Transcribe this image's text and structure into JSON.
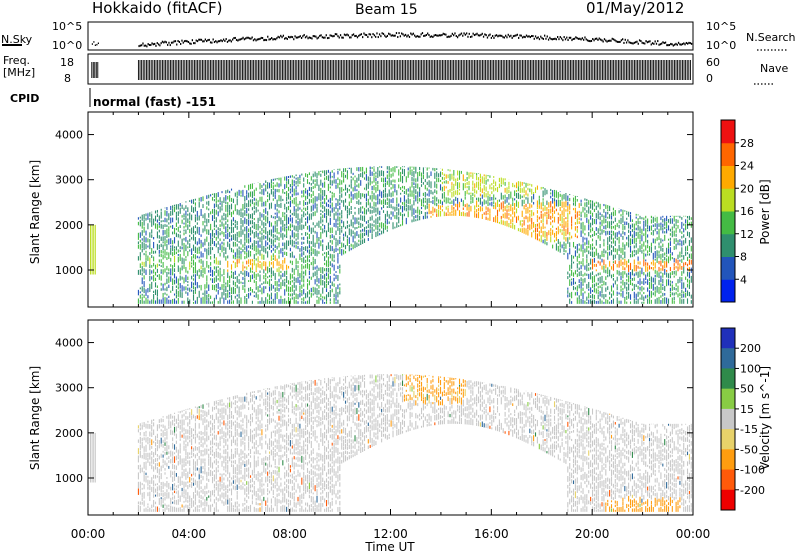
{
  "header": {
    "title": "Hokkaido (fitACF)",
    "beam": "Beam 15",
    "date": "01/May/2012"
  },
  "strips": {
    "nsky": {
      "label": "N.Sky",
      "ticks": [
        "10^5",
        "10^0"
      ],
      "right_ticks": [
        "10^5",
        "10^0"
      ],
      "right_label": "N.Search"
    },
    "freq": {
      "label_line1": "Freq.",
      "label_line2": "[MHz]",
      "ticks": [
        "18",
        "8"
      ],
      "right_ticks": [
        "60",
        "0"
      ],
      "right_label": "Nave"
    },
    "cpid": {
      "label": "CPID",
      "value": "normal (fast) -151"
    }
  },
  "colors": {
    "power": [
      "#0022ee",
      "#2255bb",
      "#2f8f6e",
      "#44bb44",
      "#bbdd22",
      "#ffaa00",
      "#ff6600",
      "#ee1111"
    ],
    "velocity": [
      "#2030bb",
      "#2f6a9a",
      "#2f8a4a",
      "#88cc44",
      "#c8c8c8",
      "#e8d26a",
      "#ff9d10",
      "#ff5a0a",
      "#ee0000"
    ]
  },
  "chart_data": [
    {
      "type": "heatmap",
      "name": "power",
      "ylabel": "Slant Range [km]",
      "ylim": [
        180,
        4500
      ],
      "yticks": [
        1000,
        2000,
        3000,
        4000
      ],
      "xlabel": "",
      "xlim": [
        "00:00",
        "24:00"
      ],
      "colorbar": {
        "label": "Power [dB]",
        "ticks": [
          4,
          8,
          12,
          16,
          20,
          24,
          28
        ],
        "range": [
          0,
          32
        ]
      },
      "data_gap": [
        "00:20",
        "02:00"
      ],
      "echo_regions": [
        {
          "t": [
            2.0,
            9.0
          ],
          "range_km": [
            1000,
            1250
          ],
          "value": 14
        },
        {
          "t": [
            5.5,
            8.0
          ],
          "range_km": [
            950,
            1200
          ],
          "value": 22
        },
        {
          "t": [
            2.0,
            14.0
          ],
          "range_km": [
            1400,
            2400
          ],
          "value": 10
        },
        {
          "t": [
            13.5,
            19.5
          ],
          "range_km": [
            1600,
            2400
          ],
          "value": 22
        },
        {
          "t": [
            14.0,
            18.0
          ],
          "range_km": [
            2600,
            3200
          ],
          "value": 18
        },
        {
          "t": [
            20.0,
            24.0
          ],
          "range_km": [
            950,
            1150
          ],
          "value": 24
        }
      ]
    },
    {
      "type": "heatmap",
      "name": "velocity",
      "ylabel": "Slant Range [km]",
      "ylim": [
        180,
        4500
      ],
      "yticks": [
        1000,
        2000,
        3000,
        4000
      ],
      "xlabel": "Time UT",
      "xticks": [
        "00:00",
        "04:00",
        "08:00",
        "12:00",
        "16:00",
        "20:00",
        "00:00"
      ],
      "colorbar": {
        "label": "Velocity [m s^-1]",
        "ticks": [
          200,
          100,
          50,
          15,
          -15,
          -50,
          -100,
          -200
        ]
      },
      "data_gap": [
        "00:20",
        "02:00"
      ],
      "echo_regions": [
        {
          "t": [
            2.0,
            24.0
          ],
          "range_km": [
            400,
            3200
          ],
          "value": 0
        },
        {
          "t": [
            6.0,
            10.0
          ],
          "range_km": [
            1100,
            1500
          ],
          "value": 0
        },
        {
          "t": [
            12.5,
            15.0
          ],
          "range_km": [
            2600,
            3300
          ],
          "value": -60
        },
        {
          "t": [
            20.5,
            23.5
          ],
          "range_km": [
            200,
            500
          ],
          "value": -80
        }
      ]
    }
  ]
}
